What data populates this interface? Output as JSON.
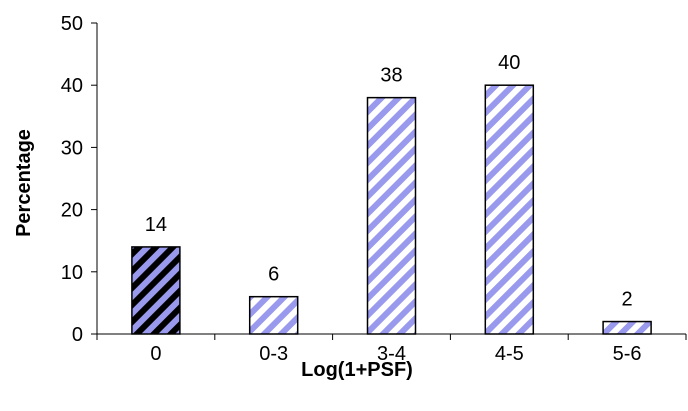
{
  "chart_data": {
    "type": "bar",
    "categories": [
      "0",
      "0-3",
      "3-4",
      "4-5",
      "5-6"
    ],
    "values": [
      14,
      6,
      38,
      40,
      2
    ],
    "data_labels": [
      "14",
      "6",
      "38",
      "40",
      "2"
    ],
    "title": "",
    "xlabel": "Log(1+PSF)",
    "ylabel": "Percentage",
    "ylim": [
      0,
      50
    ],
    "yticks": [
      "0",
      "10",
      "20",
      "30",
      "40",
      "50"
    ],
    "grid": false,
    "legend": "none",
    "bar_fills": [
      "dark-diagonal-hatch",
      "light-diagonal-hatch",
      "light-diagonal-hatch",
      "light-diagonal-hatch",
      "light-diagonal-hatch"
    ],
    "colors": {
      "stripe": "#9999ee",
      "dark_background": "#000000",
      "light_background": "#ffffff",
      "axis": "#000000"
    }
  }
}
